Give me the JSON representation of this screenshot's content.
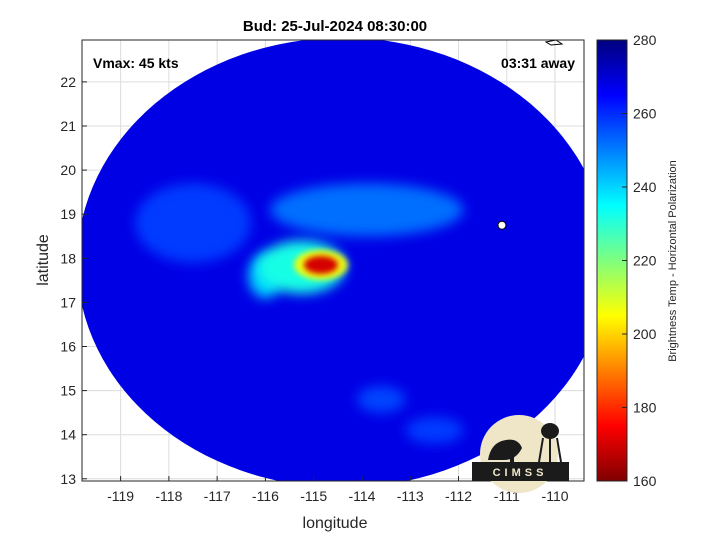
{
  "chart_data": {
    "type": "heatmap",
    "title": "Bud: 25-Jul-2024 08:30:00",
    "xlabel": "longitude",
    "ylabel": "latitude",
    "xlim": [
      -119.8,
      -109.4
    ],
    "ylim": [
      12.95,
      22.95
    ],
    "xticks": [
      -119,
      -118,
      -117,
      -116,
      -115,
      -114,
      -113,
      -112,
      -111,
      -110
    ],
    "yticks": [
      13,
      14,
      15,
      16,
      17,
      18,
      19,
      20,
      21,
      22
    ],
    "grid": true,
    "annotations": {
      "left": "Vmax: 45 kts",
      "right": "03:31 away"
    },
    "colorbar": {
      "label": "Brightness Temp - Horizontal Polarization",
      "range": [
        160,
        280
      ],
      "ticks": [
        160,
        180,
        200,
        220,
        240,
        260,
        280
      ],
      "colormap": "jet"
    },
    "swath": {
      "center_lon": -114.4,
      "center_lat": 17.9,
      "radius_lon": 5.5,
      "radius_lat": 5.1,
      "background_temp": 268
    },
    "features": [
      {
        "lon": -114.85,
        "lat": 17.85,
        "temp": 170,
        "width_lon": 0.35,
        "width_lat": 0.2
      },
      {
        "lon": -115.25,
        "lat": 17.8,
        "temp": 232,
        "width_lon": 0.9,
        "width_lat": 0.6
      },
      {
        "lon": -116.0,
        "lat": 17.6,
        "temp": 240,
        "width_lon": 0.35,
        "width_lat": 0.5
      },
      {
        "lon": -113.9,
        "lat": 19.1,
        "temp": 252,
        "width_lon": 2.0,
        "width_lat": 0.6
      },
      {
        "lon": -117.5,
        "lat": 18.8,
        "temp": 258,
        "width_lon": 1.2,
        "width_lat": 0.9
      },
      {
        "lon": -113.6,
        "lat": 14.8,
        "temp": 257,
        "width_lon": 0.5,
        "width_lat": 0.3
      },
      {
        "lon": -112.5,
        "lat": 14.1,
        "temp": 258,
        "width_lon": 0.6,
        "width_lat": 0.3
      }
    ],
    "coastline_points": [
      {
        "lon": -111.1,
        "lat": 18.75
      }
    ],
    "logo_text": "CIMSS"
  },
  "colors": {
    "jet": [
      "#7f0000",
      "#ff0000",
      "#ff7f00",
      "#ffff00",
      "#7fff7f",
      "#00ffff",
      "#007fff",
      "#0000ff",
      "#00007f"
    ]
  }
}
